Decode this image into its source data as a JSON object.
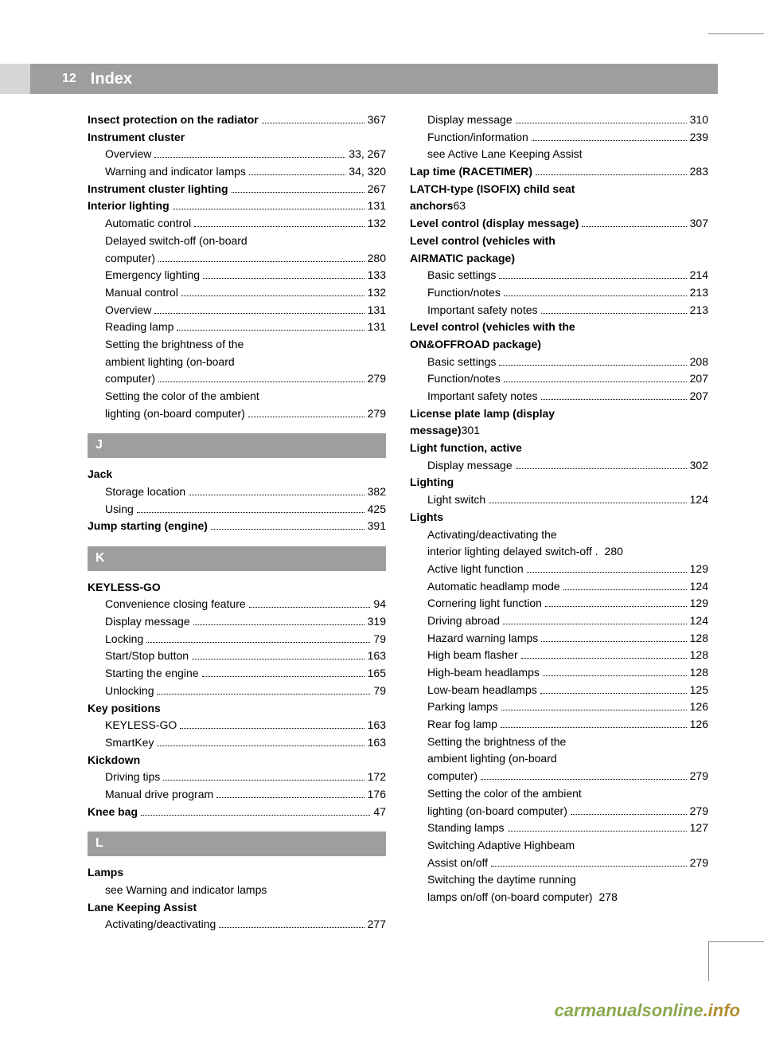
{
  "header": {
    "page_number": "12",
    "title": "Index"
  },
  "watermark": {
    "part1": "carmanualsonline",
    "part2": ".info"
  },
  "columns": {
    "left": [
      {
        "type": "entry",
        "bold": true,
        "label": "Insect protection on the radiator",
        "page": "367"
      },
      {
        "type": "heading",
        "label": "Instrument cluster"
      },
      {
        "type": "entry",
        "indent": true,
        "label": "Overview",
        "page": "33, 267"
      },
      {
        "type": "entry",
        "indent": true,
        "label": "Warning and indicator lamps",
        "page": "34, 320"
      },
      {
        "type": "entry",
        "bold": true,
        "label": "Instrument cluster lighting",
        "page": "267"
      },
      {
        "type": "entry",
        "bold": true,
        "label": "Interior lighting",
        "page": "131"
      },
      {
        "type": "entry",
        "indent": true,
        "label": "Automatic control",
        "page": "132"
      },
      {
        "type": "multi",
        "lines": [
          "Delayed switch-off (on-board"
        ],
        "last": "computer)",
        "page": "280"
      },
      {
        "type": "entry",
        "indent": true,
        "label": "Emergency lighting",
        "page": "133"
      },
      {
        "type": "entry",
        "indent": true,
        "label": "Manual control",
        "page": "132"
      },
      {
        "type": "entry",
        "indent": true,
        "label": "Overview",
        "page": "131"
      },
      {
        "type": "entry",
        "indent": true,
        "label": "Reading lamp",
        "page": "131"
      },
      {
        "type": "multi",
        "lines": [
          "Setting the brightness of the",
          "ambient lighting (on-board"
        ],
        "last": "computer)",
        "page": "279"
      },
      {
        "type": "multi",
        "lines": [
          "Setting the color of the ambient"
        ],
        "last": "lighting (on-board computer)",
        "page": "279"
      },
      {
        "type": "letter",
        "label": "J"
      },
      {
        "type": "heading",
        "label": "Jack"
      },
      {
        "type": "entry",
        "indent": true,
        "label": "Storage location",
        "page": "382"
      },
      {
        "type": "entry",
        "indent": true,
        "label": "Using",
        "page": "425"
      },
      {
        "type": "entry",
        "bold": true,
        "label": "Jump starting (engine)",
        "page": "391"
      },
      {
        "type": "letter",
        "label": "K"
      },
      {
        "type": "heading",
        "label": "KEYLESS-GO"
      },
      {
        "type": "entry",
        "indent": true,
        "label": "Convenience closing feature",
        "page": "94"
      },
      {
        "type": "entry",
        "indent": true,
        "label": "Display message",
        "page": "319"
      },
      {
        "type": "entry",
        "indent": true,
        "label": "Locking",
        "page": "79"
      },
      {
        "type": "entry",
        "indent": true,
        "label": "Start/Stop button",
        "page": "163"
      },
      {
        "type": "entry",
        "indent": true,
        "label": "Starting the engine",
        "page": "165"
      },
      {
        "type": "entry",
        "indent": true,
        "label": "Unlocking",
        "page": "79"
      },
      {
        "type": "heading",
        "label": "Key positions"
      },
      {
        "type": "entry",
        "indent": true,
        "label": "KEYLESS-GO",
        "page": "163"
      },
      {
        "type": "entry",
        "indent": true,
        "label": "SmartKey",
        "page": "163"
      },
      {
        "type": "heading",
        "label": "Kickdown"
      },
      {
        "type": "entry",
        "indent": true,
        "label": "Driving tips",
        "page": "172"
      },
      {
        "type": "entry",
        "indent": true,
        "label": "Manual drive program",
        "page": "176"
      },
      {
        "type": "entry",
        "bold": true,
        "label": "Knee bag",
        "page": "47"
      },
      {
        "type": "letter",
        "label": "L"
      },
      {
        "type": "heading",
        "label": "Lamps"
      },
      {
        "type": "see",
        "label": "see Warning and indicator lamps"
      },
      {
        "type": "heading",
        "label": "Lane Keeping Assist"
      },
      {
        "type": "entry",
        "indent": true,
        "label": "Activating/deactivating",
        "page": "277"
      }
    ],
    "right": [
      {
        "type": "entry",
        "indent": true,
        "label": "Display message",
        "page": "310"
      },
      {
        "type": "entry",
        "indent": true,
        "label": "Function/information",
        "page": "239"
      },
      {
        "type": "see",
        "label": "see Active Lane Keeping Assist"
      },
      {
        "type": "entry",
        "bold": true,
        "label": "Lap time (RACETIMER)",
        "page": "283"
      },
      {
        "type": "multi",
        "bold": true,
        "noindent": true,
        "lines": [
          "LATCH-type (ISOFIX) child seat"
        ],
        "last": "anchors",
        "page": "63"
      },
      {
        "type": "entry",
        "bold": true,
        "label": "Level control (display message)",
        "page": "307"
      },
      {
        "type": "heading",
        "label": "Level control (vehicles with"
      },
      {
        "type": "heading",
        "label": "AIRMATIC package)"
      },
      {
        "type": "entry",
        "indent": true,
        "label": "Basic settings",
        "page": "214"
      },
      {
        "type": "entry",
        "indent": true,
        "label": "Function/notes",
        "page": "213"
      },
      {
        "type": "entry",
        "indent": true,
        "label": "Important safety notes",
        "page": "213"
      },
      {
        "type": "heading",
        "label": "Level control (vehicles with the"
      },
      {
        "type": "heading",
        "label": "ON&OFFROAD package)"
      },
      {
        "type": "entry",
        "indent": true,
        "label": "Basic settings",
        "page": "208"
      },
      {
        "type": "entry",
        "indent": true,
        "label": "Function/notes",
        "page": "207"
      },
      {
        "type": "entry",
        "indent": true,
        "label": "Important safety notes",
        "page": "207"
      },
      {
        "type": "multi",
        "bold": true,
        "noindent": true,
        "lines": [
          "License plate lamp (display"
        ],
        "last": "message)",
        "page": "301"
      },
      {
        "type": "heading",
        "label": "Light function, active"
      },
      {
        "type": "entry",
        "indent": true,
        "label": "Display message",
        "page": "302"
      },
      {
        "type": "heading",
        "label": "Lighting"
      },
      {
        "type": "entry",
        "indent": true,
        "label": "Light switch",
        "page": "124"
      },
      {
        "type": "heading",
        "label": "Lights"
      },
      {
        "type": "multi",
        "lines": [
          "Activating/deactivating the"
        ],
        "last": "interior lighting delayed switch-off .",
        "page": "280",
        "shortdots": true
      },
      {
        "type": "entry",
        "indent": true,
        "label": "Active light function",
        "page": "129"
      },
      {
        "type": "entry",
        "indent": true,
        "label": "Automatic headlamp mode",
        "page": "124"
      },
      {
        "type": "entry",
        "indent": true,
        "label": "Cornering light function",
        "page": "129"
      },
      {
        "type": "entry",
        "indent": true,
        "label": "Driving abroad",
        "page": "124"
      },
      {
        "type": "entry",
        "indent": true,
        "label": "Hazard warning lamps",
        "page": "128"
      },
      {
        "type": "entry",
        "indent": true,
        "label": "High beam flasher",
        "page": "128"
      },
      {
        "type": "entry",
        "indent": true,
        "label": "High-beam headlamps",
        "page": "128"
      },
      {
        "type": "entry",
        "indent": true,
        "label": "Low-beam headlamps",
        "page": "125"
      },
      {
        "type": "entry",
        "indent": true,
        "label": "Parking lamps",
        "page": "126"
      },
      {
        "type": "entry",
        "indent": true,
        "label": "Rear fog lamp",
        "page": "126"
      },
      {
        "type": "multi",
        "lines": [
          "Setting the brightness of the",
          "ambient lighting (on-board"
        ],
        "last": "computer)",
        "page": "279"
      },
      {
        "type": "multi",
        "lines": [
          "Setting the color of the ambient"
        ],
        "last": "lighting (on-board computer)",
        "page": "279"
      },
      {
        "type": "entry",
        "indent": true,
        "label": "Standing lamps",
        "page": "127"
      },
      {
        "type": "multi",
        "lines": [
          "Switching Adaptive Highbeam"
        ],
        "last": "Assist on/off",
        "page": "279"
      },
      {
        "type": "multi",
        "lines": [
          "Switching the daytime running"
        ],
        "last": "lamps on/off (on-board computer)",
        "page": "278",
        "shortdots": true
      }
    ]
  }
}
